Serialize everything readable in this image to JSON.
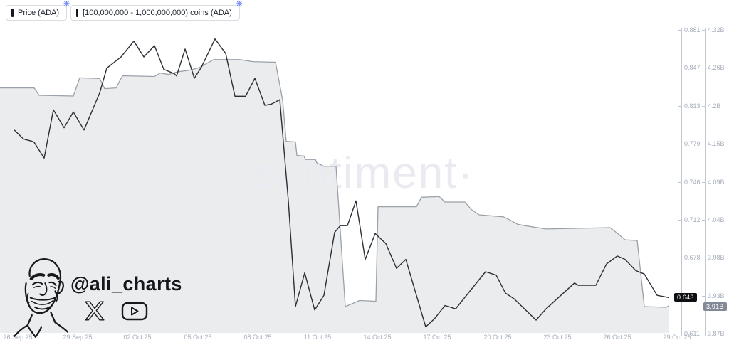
{
  "legend": {
    "items": [
      {
        "label": "Price (ADA)"
      },
      {
        "label": "[100,000,000 - 1,000,000,000) coins (ADA)"
      }
    ]
  },
  "watermark": "·santiment·",
  "attribution": {
    "handle": "@ali_charts",
    "icons": [
      "x-logo",
      "youtube"
    ]
  },
  "colors": {
    "price_line": "#2b2f36",
    "area_line": "#9ba1a9",
    "area_fill": "#ebeced",
    "watermark": "#e9ebf1",
    "price_badge_bg": "#0e0f12",
    "volume_badge_bg": "#828997",
    "accent_gear": "#5b79f7"
  },
  "chart_data": {
    "type": "line",
    "title": "",
    "grid": false,
    "legend_position": "top-left",
    "x_axis": {
      "labels": [
        "26 Sep 25",
        "29 Sep 25",
        "02 Oct 25",
        "05 Oct 25",
        "08 Oct 25",
        "11 Oct 25",
        "14 Oct 25",
        "17 Oct 25",
        "20 Oct 25",
        "23 Oct 25",
        "26 Oct 25",
        "29 Oct 25"
      ]
    },
    "price_axis": {
      "range_top": 0.881,
      "range_bottom": 0.611,
      "ticks": [
        {
          "label": "0.881",
          "slot": 0
        },
        {
          "label": "0.847",
          "slot": 1
        },
        {
          "label": "0.813",
          "slot": 2
        },
        {
          "label": "0.779",
          "slot": 3
        },
        {
          "label": "0.746",
          "slot": 4
        },
        {
          "label": "0.712",
          "slot": 5
        },
        {
          "label": "0.678",
          "slot": 6
        },
        {
          "label": "0.611",
          "slot": 8
        }
      ],
      "badge": "0.643",
      "badge_value": 0.643
    },
    "volume_axis": {
      "range_top": 4.32,
      "range_bottom": 3.87,
      "ticks": [
        {
          "label": "4.32B",
          "slot": 0
        },
        {
          "label": "4.26B",
          "slot": 1
        },
        {
          "label": "4.2B",
          "slot": 2
        },
        {
          "label": "4.15B",
          "slot": 3
        },
        {
          "label": "4.09B",
          "slot": 4
        },
        {
          "label": "4.04B",
          "slot": 5
        },
        {
          "label": "3.98B",
          "slot": 6
        },
        {
          "label": "3.93B",
          "slot": 7
        },
        {
          "label": "3.87B",
          "slot": 8
        }
      ],
      "badge": "3.91B",
      "badge_value": 3.91
    },
    "series": [
      {
        "name": "Price (ADA)",
        "style": "line",
        "axis": "price",
        "color": "#2b2f36",
        "points": [
          [
            20,
            0.792
          ],
          [
            33,
            0.784
          ],
          [
            45,
            0.782
          ],
          [
            48,
            0.781
          ],
          [
            62,
            0.767
          ],
          [
            75,
            0.81
          ],
          [
            90,
            0.794
          ],
          [
            103,
            0.808
          ],
          [
            118,
            0.792
          ],
          [
            140,
            0.825
          ],
          [
            150,
            0.847
          ],
          [
            162,
            0.853
          ],
          [
            170,
            0.857
          ],
          [
            188,
            0.871
          ],
          [
            202,
            0.857
          ],
          [
            217,
            0.867
          ],
          [
            230,
            0.846
          ],
          [
            245,
            0.842
          ],
          [
            248,
            0.84
          ],
          [
            260,
            0.864
          ],
          [
            273,
            0.838
          ],
          [
            283,
            0.848
          ],
          [
            302,
            0.873
          ],
          [
            317,
            0.86
          ],
          [
            330,
            0.822
          ],
          [
            345,
            0.822
          ],
          [
            358,
            0.838
          ],
          [
            372,
            0.814
          ],
          [
            381,
            0.815
          ],
          [
            393,
            0.819
          ],
          [
            405,
            0.729
          ],
          [
            415,
            0.635
          ],
          [
            428,
            0.665
          ],
          [
            442,
            0.632
          ],
          [
            455,
            0.645
          ],
          [
            470,
            0.701
          ],
          [
            478,
            0.707
          ],
          [
            488,
            0.707
          ],
          [
            500,
            0.729
          ],
          [
            513,
            0.677
          ],
          [
            527,
            0.7
          ],
          [
            542,
            0.691
          ],
          [
            557,
            0.669
          ],
          [
            570,
            0.677
          ],
          [
            598,
            0.617
          ],
          [
            610,
            0.624
          ],
          [
            625,
            0.636
          ],
          [
            640,
            0.633
          ],
          [
            682,
            0.666
          ],
          [
            697,
            0.663
          ],
          [
            710,
            0.647
          ],
          [
            722,
            0.642
          ],
          [
            753,
            0.623
          ],
          [
            767,
            0.633
          ],
          [
            807,
            0.656
          ],
          [
            812,
            0.654
          ],
          [
            837,
            0.654
          ],
          [
            852,
            0.673
          ],
          [
            867,
            0.68
          ],
          [
            878,
            0.677
          ],
          [
            893,
            0.667
          ],
          [
            905,
            0.664
          ],
          [
            923,
            0.645
          ],
          [
            940,
            0.643
          ]
        ]
      },
      {
        "name": "[100,000,000 - 1,000,000,000) coins (ADA)",
        "style": "area",
        "axis": "volume",
        "color": "#9ba1a9",
        "fill": "#ebeced",
        "points": [
          [
            0,
            4.234
          ],
          [
            48,
            4.234
          ],
          [
            55,
            4.223
          ],
          [
            103,
            4.222
          ],
          [
            112,
            4.249
          ],
          [
            140,
            4.248
          ],
          [
            147,
            4.233
          ],
          [
            163,
            4.234
          ],
          [
            172,
            4.252
          ],
          [
            217,
            4.251
          ],
          [
            225,
            4.256
          ],
          [
            237,
            4.254
          ],
          [
            250,
            4.258
          ],
          [
            265,
            4.26
          ],
          [
            280,
            4.264
          ],
          [
            300,
            4.276
          ],
          [
            337,
            4.276
          ],
          [
            355,
            4.273
          ],
          [
            387,
            4.272
          ],
          [
            397,
            4.216
          ],
          [
            402,
            4.155
          ],
          [
            415,
            4.154
          ],
          [
            417,
            4.134
          ],
          [
            427,
            4.133
          ],
          [
            429,
            4.128
          ],
          [
            443,
            4.128
          ],
          [
            445,
            4.123
          ],
          [
            455,
            4.118
          ],
          [
            472,
            4.118
          ],
          [
            485,
            3.91
          ],
          [
            505,
            3.919
          ],
          [
            528,
            3.918
          ],
          [
            531,
            4.058
          ],
          [
            585,
            4.058
          ],
          [
            592,
            4.072
          ],
          [
            617,
            4.073
          ],
          [
            625,
            4.065
          ],
          [
            653,
            4.065
          ],
          [
            662,
            4.054
          ],
          [
            673,
            4.046
          ],
          [
            707,
            4.043
          ],
          [
            717,
            4.038
          ],
          [
            727,
            4.032
          ],
          [
            737,
            4.03
          ],
          [
            767,
            4.025
          ],
          [
            857,
            4.027
          ],
          [
            868,
            4.018
          ],
          [
            878,
            4.009
          ],
          [
            895,
            4.008
          ],
          [
            905,
            3.91
          ],
          [
            935,
            3.909
          ],
          [
            940,
            3.911
          ]
        ]
      }
    ]
  }
}
